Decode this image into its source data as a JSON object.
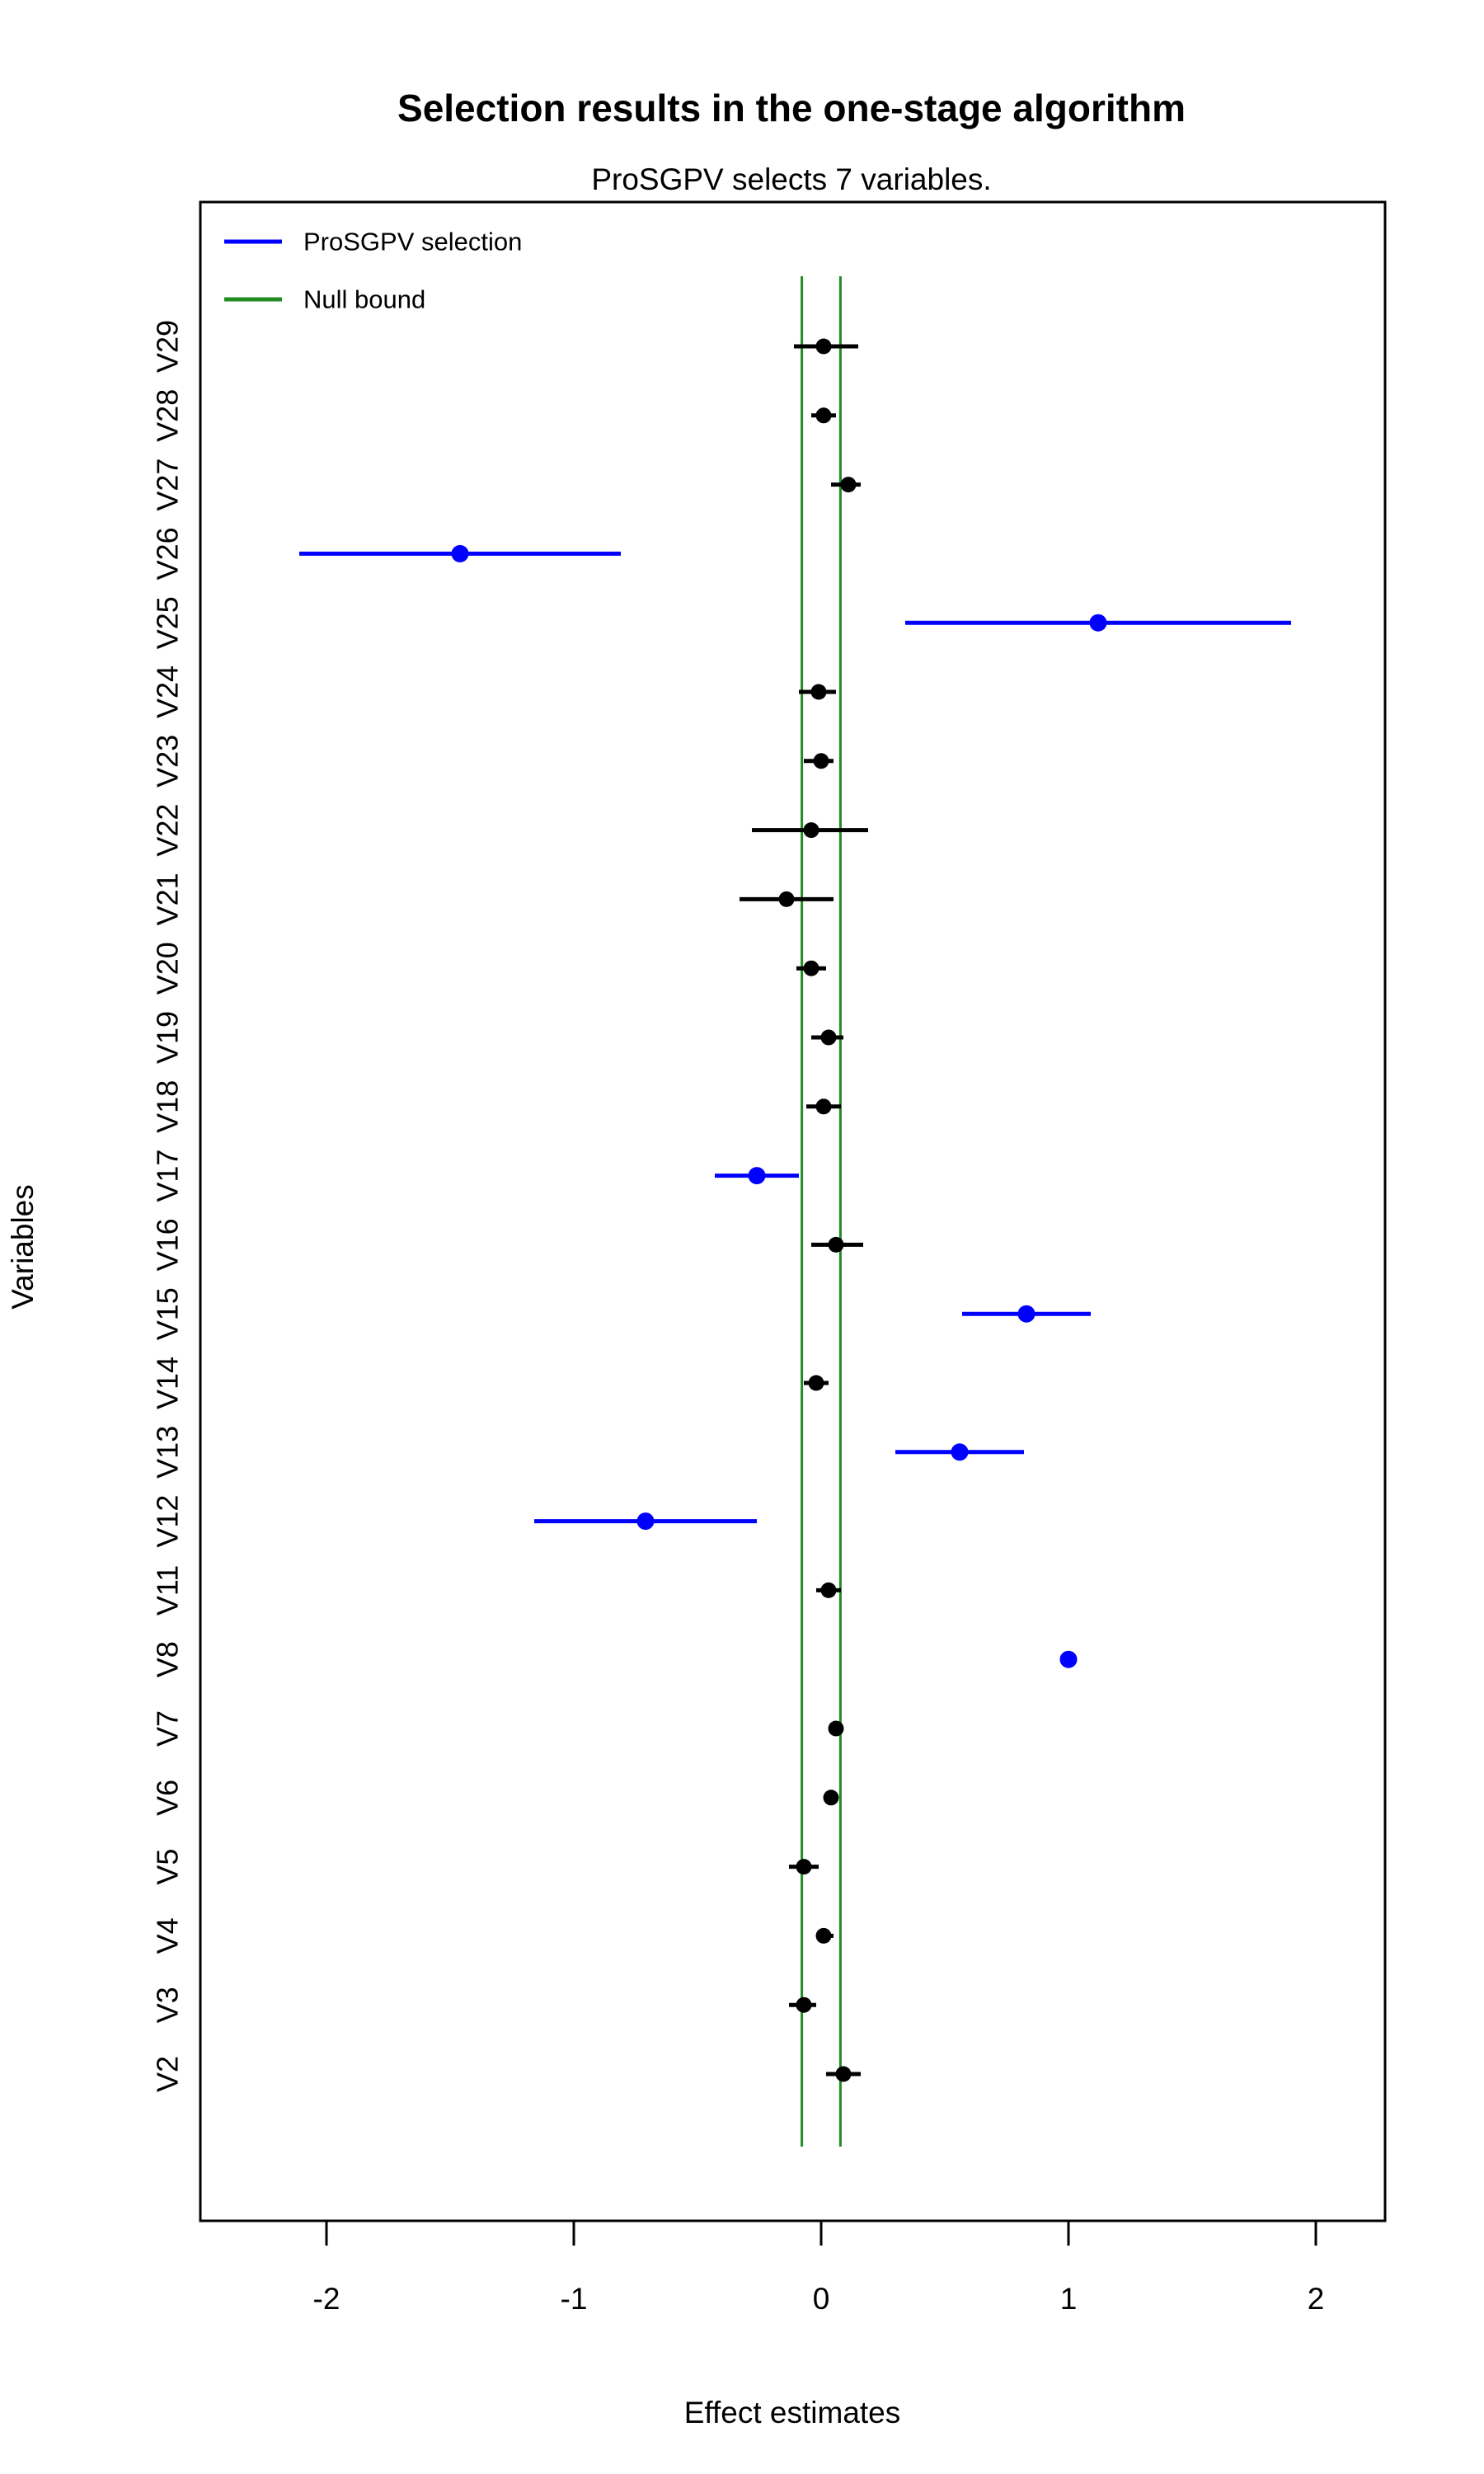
{
  "page": {
    "background": "#ffffff"
  },
  "chart_data": {
    "type": "scatter",
    "subtype": "forest-plot",
    "title": "Selection results in the one-stage algorithm",
    "subtitle": "ProSGPV selects 7 variables.",
    "xlabel": "Effect estimates",
    "ylabel": "Variables",
    "x_ticks": [
      -2,
      -1,
      0,
      1,
      2
    ],
    "xlim": [
      -2.51,
      2.28
    ],
    "grid": false,
    "null_bound": 0.078,
    "selected_count": 7,
    "legend": {
      "position": "top-left",
      "items": [
        {
          "label": "ProSGPV selection",
          "color": "#0000ff"
        },
        {
          "label": "Null bound",
          "color": "#228b22"
        }
      ]
    },
    "colors": {
      "selected": "#0000ff",
      "unselected": "#000000",
      "null_bound_line": "#228b22",
      "axis": "#000000"
    },
    "variables": [
      {
        "label": "V2",
        "estimate": 0.09,
        "ci_low": 0.02,
        "ci_high": 0.16,
        "selected": false
      },
      {
        "label": "V3",
        "estimate": -0.07,
        "ci_low": -0.13,
        "ci_high": -0.02,
        "selected": false
      },
      {
        "label": "V4",
        "estimate": 0.01,
        "ci_low": -0.02,
        "ci_high": 0.05,
        "selected": false
      },
      {
        "label": "V5",
        "estimate": -0.07,
        "ci_low": -0.13,
        "ci_high": -0.01,
        "selected": false
      },
      {
        "label": "V6",
        "estimate": 0.04,
        "ci_low": 0.01,
        "ci_high": 0.07,
        "selected": false
      },
      {
        "label": "V7",
        "estimate": 0.06,
        "ci_low": 0.03,
        "ci_high": 0.09,
        "selected": false
      },
      {
        "label": "V8",
        "estimate": 1.0,
        "ci_low": 0.97,
        "ci_high": 1.03,
        "selected": true
      },
      {
        "label": "V11",
        "estimate": 0.03,
        "ci_low": -0.02,
        "ci_high": 0.08,
        "selected": false
      },
      {
        "label": "V12",
        "estimate": -0.71,
        "ci_low": -1.16,
        "ci_high": -0.26,
        "selected": true
      },
      {
        "label": "V13",
        "estimate": 0.56,
        "ci_low": 0.3,
        "ci_high": 0.82,
        "selected": true
      },
      {
        "label": "V14",
        "estimate": -0.02,
        "ci_low": -0.07,
        "ci_high": 0.03,
        "selected": false
      },
      {
        "label": "V15",
        "estimate": 0.83,
        "ci_low": 0.57,
        "ci_high": 1.09,
        "selected": true
      },
      {
        "label": "V16",
        "estimate": 0.06,
        "ci_low": -0.04,
        "ci_high": 0.17,
        "selected": false
      },
      {
        "label": "V17",
        "estimate": -0.26,
        "ci_low": -0.43,
        "ci_high": -0.09,
        "selected": true
      },
      {
        "label": "V18",
        "estimate": 0.01,
        "ci_low": -0.06,
        "ci_high": 0.08,
        "selected": false
      },
      {
        "label": "V19",
        "estimate": 0.03,
        "ci_low": -0.04,
        "ci_high": 0.09,
        "selected": false
      },
      {
        "label": "V20",
        "estimate": -0.04,
        "ci_low": -0.1,
        "ci_high": 0.02,
        "selected": false
      },
      {
        "label": "V21",
        "estimate": -0.14,
        "ci_low": -0.33,
        "ci_high": 0.05,
        "selected": false
      },
      {
        "label": "V22",
        "estimate": -0.04,
        "ci_low": -0.28,
        "ci_high": 0.19,
        "selected": false
      },
      {
        "label": "V23",
        "estimate": 0.0,
        "ci_low": -0.07,
        "ci_high": 0.05,
        "selected": false
      },
      {
        "label": "V24",
        "estimate": -0.01,
        "ci_low": -0.09,
        "ci_high": 0.06,
        "selected": false
      },
      {
        "label": "V25",
        "estimate": 1.12,
        "ci_low": 0.34,
        "ci_high": 1.9,
        "selected": true
      },
      {
        "label": "V26",
        "estimate": -1.46,
        "ci_low": -2.11,
        "ci_high": -0.81,
        "selected": true
      },
      {
        "label": "V27",
        "estimate": 0.11,
        "ci_low": 0.04,
        "ci_high": 0.16,
        "selected": false
      },
      {
        "label": "V28",
        "estimate": 0.01,
        "ci_low": -0.04,
        "ci_high": 0.06,
        "selected": false
      },
      {
        "label": "V29",
        "estimate": 0.01,
        "ci_low": -0.11,
        "ci_high": 0.15,
        "selected": false
      }
    ]
  }
}
